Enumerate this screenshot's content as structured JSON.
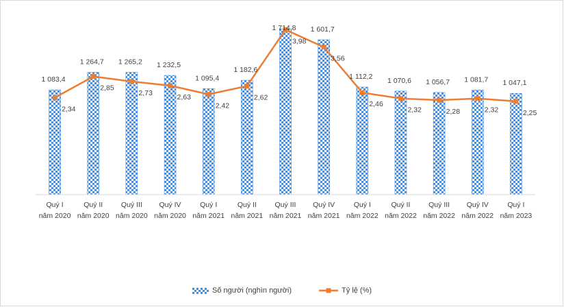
{
  "chart_data": {
    "type": "bar+line",
    "title": "",
    "categories": [
      [
        "Quý I",
        "năm 2020"
      ],
      [
        "Quý II",
        "năm 2020"
      ],
      [
        "Quý III",
        "năm 2020"
      ],
      [
        "Quý IV",
        "năm 2020"
      ],
      [
        "Quý I",
        "năm 2021"
      ],
      [
        "Quý II",
        "năm 2021"
      ],
      [
        "Quý III",
        "năm 2021"
      ],
      [
        "Quý IV",
        "năm 2021"
      ],
      [
        "Quý I",
        "năm 2022"
      ],
      [
        "Quý II",
        "năm 2022"
      ],
      [
        "Quý III",
        "năm 2022"
      ],
      [
        "Quý IV",
        "năm 2022"
      ],
      [
        "Quý I",
        "năm 2023"
      ]
    ],
    "series": [
      {
        "name": "Số người (nghìn người)",
        "kind": "bar",
        "color": "#4a90e2",
        "values": [
          1083.4,
          1264.7,
          1265.2,
          1232.5,
          1095.4,
          1182.6,
          1714.8,
          1601.7,
          1112.2,
          1070.6,
          1056.7,
          1081.7,
          1047.1
        ],
        "labels": [
          "1 083,4",
          "1 264,7",
          "1 265,2",
          "1 232,5",
          "1 095,4",
          "1 182,6",
          "1 714,8",
          "1 601,7",
          "1 112,2",
          "1 070,6",
          "1 056,7",
          "1 081,7",
          "1 047,1"
        ]
      },
      {
        "name": "Tỷ lệ (%)",
        "kind": "line",
        "color": "#ed7d31",
        "values": [
          2.34,
          2.85,
          2.73,
          2.63,
          2.42,
          2.62,
          3.98,
          3.56,
          2.46,
          2.32,
          2.28,
          2.32,
          2.25
        ],
        "labels": [
          "2,34",
          "2,85",
          "2,73",
          "2,63",
          "2,42",
          "2,62",
          "3,98",
          "3,56",
          "2,46",
          "2,32",
          "2,28",
          "2,32",
          "2,25"
        ]
      }
    ],
    "bar_axis_range": [
      0,
      1800
    ],
    "line_axis_range": [
      0,
      4.2
    ],
    "gridlines": false,
    "legend_position": "bottom"
  }
}
